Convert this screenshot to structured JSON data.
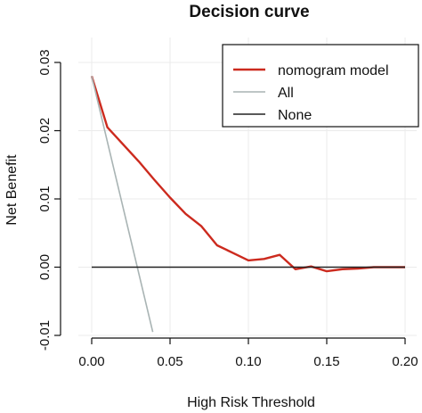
{
  "chart_data": {
    "type": "line",
    "title": "Decision curve",
    "xlabel": "High Risk Threshold",
    "ylabel": "Net Benefit",
    "xlim": [
      0,
      0.2
    ],
    "ylim": [
      -0.01,
      0.03
    ],
    "x_ticks": [
      "0.00",
      "0.05",
      "0.10",
      "0.15",
      "0.20"
    ],
    "y_ticks": [
      "-0.01",
      "0.00",
      "0.01",
      "0.02",
      "0.03"
    ],
    "grid": true,
    "legend_position": "top-right",
    "series": [
      {
        "name": "nomogram model",
        "color": "#cc2a1e",
        "x": [
          0.0,
          0.01,
          0.02,
          0.03,
          0.04,
          0.05,
          0.06,
          0.07,
          0.08,
          0.09,
          0.1,
          0.11,
          0.12,
          0.13,
          0.14,
          0.15,
          0.16,
          0.17,
          0.18,
          0.19,
          0.2
        ],
        "y": [
          0.028,
          0.0205,
          0.018,
          0.0155,
          0.0128,
          0.0102,
          0.0078,
          0.006,
          0.0032,
          0.0021,
          0.001,
          0.0012,
          0.0018,
          -0.0003,
          0.0001,
          -0.0006,
          -0.0003,
          -0.0002,
          0.0,
          0.0,
          0.0
        ]
      },
      {
        "name": "All",
        "color": "#a9b4b4",
        "x": [
          0.0,
          0.039
        ],
        "y": [
          0.028,
          -0.0095
        ]
      },
      {
        "name": "None",
        "color": "#222222",
        "x": [
          0.0,
          0.2
        ],
        "y": [
          0.0,
          0.0
        ]
      }
    ]
  }
}
